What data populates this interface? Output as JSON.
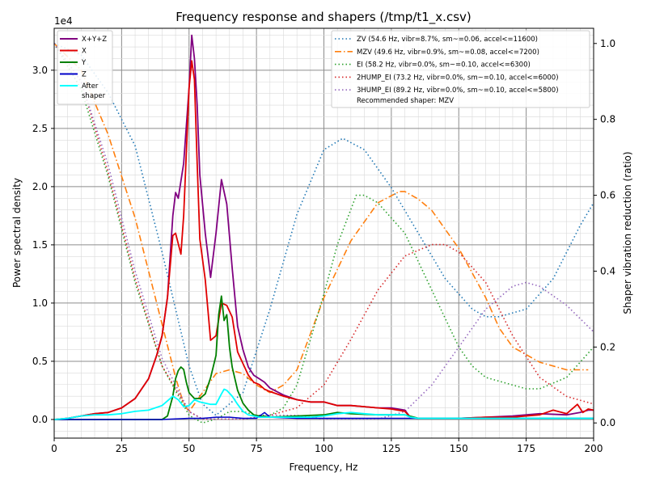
{
  "chart_data": {
    "type": "line",
    "title": "Frequency response and shapers (/tmp/t1_x.csv)",
    "xlabel": "Frequency, Hz",
    "ylabel_left": "Power spectral density",
    "ylabel_right": "Shaper vibration reduction (ratio)",
    "left_scale_label": "1e4",
    "xlim": [
      0,
      200
    ],
    "ylim_left": [
      -0.16,
      3.36
    ],
    "ylim_right": [
      -0.04,
      1.04
    ],
    "x_ticks": [
      0,
      25,
      50,
      75,
      100,
      125,
      150,
      175,
      200
    ],
    "y_ticks_left": [
      0.0,
      0.5,
      1.0,
      1.5,
      2.0,
      2.5,
      3.0
    ],
    "y_ticks_right": [
      0.0,
      0.2,
      0.4,
      0.6,
      0.8,
      1.0
    ],
    "x_tick_labels": [
      "0",
      "25",
      "50",
      "75",
      "100",
      "125",
      "150",
      "175",
      "200"
    ],
    "y_tick_labels_left": [
      "0.0",
      "0.5",
      "1.0",
      "1.5",
      "2.0",
      "2.5",
      "3.0"
    ],
    "y_tick_labels_right": [
      "0.0",
      "0.2",
      "0.4",
      "0.6",
      "0.8",
      "1.0"
    ],
    "grid": true,
    "legend_left_placement": "upper-left",
    "legend_right_placement": "upper-right",
    "psd_series": [
      {
        "name": "X+Y+Z",
        "color": "#800080",
        "x": [
          0,
          5,
          10,
          15,
          20,
          25,
          30,
          35,
          38,
          40,
          42,
          44,
          45,
          46,
          48,
          50,
          51,
          52,
          53,
          54,
          56,
          58,
          60,
          62,
          64,
          66,
          68,
          70,
          72,
          74,
          76,
          78,
          80,
          85,
          90,
          95,
          100,
          105,
          110,
          115,
          120,
          125,
          130,
          132,
          135,
          140,
          150,
          160,
          170,
          180,
          190,
          195,
          198,
          200
        ],
        "y": [
          0.0,
          0.01,
          0.03,
          0.05,
          0.06,
          0.1,
          0.18,
          0.35,
          0.55,
          0.72,
          1.05,
          1.75,
          1.95,
          1.9,
          2.2,
          2.85,
          3.3,
          3.1,
          2.7,
          2.1,
          1.6,
          1.22,
          1.6,
          2.06,
          1.85,
          1.3,
          0.8,
          0.6,
          0.45,
          0.38,
          0.35,
          0.32,
          0.27,
          0.21,
          0.17,
          0.15,
          0.15,
          0.12,
          0.12,
          0.11,
          0.1,
          0.1,
          0.08,
          0.02,
          0.01,
          0.01,
          0.01,
          0.02,
          0.03,
          0.05,
          0.04,
          0.06,
          0.08,
          0.08
        ]
      },
      {
        "name": "X",
        "color": "#e00000",
        "x": [
          0,
          5,
          10,
          15,
          20,
          25,
          30,
          35,
          38,
          40,
          42,
          44,
          45,
          47,
          48,
          50,
          51,
          52,
          53,
          54,
          56,
          58,
          60,
          62,
          64,
          66,
          68,
          70,
          72,
          74,
          76,
          78,
          80,
          85,
          90,
          95,
          100,
          105,
          110,
          115,
          120,
          125,
          130,
          132,
          135,
          140,
          150,
          160,
          170,
          175,
          180,
          185,
          190,
          194,
          196,
          198,
          200
        ],
        "y": [
          0.0,
          0.01,
          0.03,
          0.05,
          0.06,
          0.1,
          0.18,
          0.35,
          0.55,
          0.72,
          1.05,
          1.58,
          1.6,
          1.42,
          1.75,
          2.85,
          3.08,
          2.92,
          2.2,
          1.55,
          1.2,
          0.68,
          0.72,
          1.0,
          0.98,
          0.88,
          0.58,
          0.48,
          0.38,
          0.32,
          0.3,
          0.26,
          0.24,
          0.2,
          0.17,
          0.15,
          0.15,
          0.12,
          0.12,
          0.11,
          0.1,
          0.09,
          0.07,
          0.02,
          0.01,
          0.01,
          0.01,
          0.02,
          0.02,
          0.03,
          0.04,
          0.08,
          0.05,
          0.13,
          0.06,
          0.09,
          0.08
        ]
      },
      {
        "name": "Y",
        "color": "#008000",
        "x": [
          0,
          40,
          42,
          44,
          45,
          46,
          47,
          48,
          49,
          50,
          52,
          54,
          56,
          58,
          60,
          61,
          62,
          63,
          64,
          65,
          66,
          68,
          70,
          72,
          74,
          76,
          80,
          90,
          100,
          105,
          110,
          120,
          130,
          135,
          150,
          175,
          200
        ],
        "y": [
          0.0,
          0.0,
          0.03,
          0.2,
          0.35,
          0.42,
          0.45,
          0.43,
          0.32,
          0.23,
          0.18,
          0.18,
          0.22,
          0.36,
          0.55,
          0.9,
          1.06,
          0.85,
          0.9,
          0.62,
          0.45,
          0.25,
          0.14,
          0.08,
          0.04,
          0.03,
          0.02,
          0.03,
          0.04,
          0.06,
          0.05,
          0.04,
          0.04,
          0.01,
          0.01,
          0.01,
          0.01
        ]
      },
      {
        "name": "Z",
        "color": "#0000c8",
        "x": [
          0,
          40,
          50,
          55,
          60,
          65,
          70,
          75,
          78,
          80,
          90,
          100,
          150,
          200
        ],
        "y": [
          0.0,
          0.0,
          0.01,
          0.01,
          0.02,
          0.02,
          0.01,
          0.01,
          0.06,
          0.02,
          0.01,
          0.01,
          0.01,
          0.01
        ]
      },
      {
        "name": "After shaper",
        "color": "#00ffff",
        "x": [
          0,
          5,
          10,
          15,
          20,
          25,
          30,
          35,
          40,
          42,
          44,
          46,
          48,
          50,
          52,
          54,
          56,
          58,
          60,
          62,
          63,
          64,
          66,
          68,
          70,
          72,
          74,
          76,
          78,
          80,
          85,
          90,
          95,
          100,
          105,
          110,
          115,
          120,
          125,
          130,
          132,
          135,
          140,
          150,
          160,
          170,
          180,
          190,
          200
        ],
        "y": [
          0.0,
          0.01,
          0.03,
          0.04,
          0.04,
          0.05,
          0.07,
          0.08,
          0.12,
          0.16,
          0.2,
          0.17,
          0.11,
          0.12,
          0.17,
          0.15,
          0.14,
          0.13,
          0.13,
          0.22,
          0.26,
          0.25,
          0.2,
          0.13,
          0.07,
          0.04,
          0.03,
          0.02,
          0.02,
          0.02,
          0.02,
          0.02,
          0.02,
          0.03,
          0.05,
          0.06,
          0.05,
          0.04,
          0.04,
          0.04,
          0.02,
          0.01,
          0.01,
          0.01,
          0.01,
          0.01,
          0.01,
          0.01,
          0.01
        ]
      }
    ],
    "shaper_series": [
      {
        "name": "ZV (54.6 Hz, vibr=8.7%, sm~=0.06, accel<=11600)",
        "color": "#1f77b4",
        "dash": "dotted",
        "x": [
          0,
          10,
          20,
          30,
          40,
          45,
          50,
          55,
          60,
          70,
          80,
          90,
          100,
          107,
          115,
          125,
          135,
          145,
          155,
          160,
          165,
          175,
          185,
          195,
          200
        ],
        "y": [
          1.0,
          0.97,
          0.87,
          0.73,
          0.45,
          0.3,
          0.15,
          0.05,
          0.02,
          0.08,
          0.3,
          0.55,
          0.72,
          0.75,
          0.72,
          0.62,
          0.5,
          0.38,
          0.3,
          0.28,
          0.28,
          0.3,
          0.38,
          0.52,
          0.58
        ]
      },
      {
        "name": "MZV (49.6 Hz, vibr=0.9%, sm~=0.08, accel<=7200)",
        "color": "#ff7f0e",
        "dash": "dashdot",
        "x": [
          0,
          10,
          20,
          30,
          40,
          45,
          48,
          50,
          55,
          60,
          65,
          70,
          75,
          80,
          85,
          90,
          100,
          110,
          120,
          128,
          130,
          135,
          140,
          150,
          160,
          165,
          170,
          180,
          190,
          198
        ],
        "y": [
          1.0,
          0.93,
          0.76,
          0.54,
          0.26,
          0.12,
          0.05,
          0.03,
          0.08,
          0.13,
          0.14,
          0.13,
          0.1,
          0.08,
          0.1,
          0.14,
          0.33,
          0.48,
          0.58,
          0.61,
          0.61,
          0.59,
          0.56,
          0.46,
          0.33,
          0.25,
          0.2,
          0.16,
          0.14,
          0.14
        ]
      },
      {
        "name": "EI (58.2 Hz, vibr=0.0%, sm~=0.10, accel<=6300)",
        "color": "#2ca02c",
        "dash": "dotted",
        "x": [
          0,
          10,
          20,
          30,
          40,
          50,
          55,
          60,
          65,
          70,
          75,
          80,
          85,
          90,
          100,
          105,
          112,
          115,
          120,
          130,
          140,
          150,
          155,
          160,
          170,
          175,
          180,
          190,
          200
        ],
        "y": [
          1.0,
          0.88,
          0.65,
          0.37,
          0.15,
          0.02,
          0.0,
          0.01,
          0.03,
          0.03,
          0.02,
          0.02,
          0.04,
          0.1,
          0.34,
          0.47,
          0.6,
          0.6,
          0.58,
          0.5,
          0.35,
          0.2,
          0.15,
          0.12,
          0.1,
          0.09,
          0.09,
          0.12,
          0.2
        ]
      },
      {
        "name": "2HUMP_EI (73.2 Hz, vibr=0.0%, sm~=0.10, accel<=6000)",
        "color": "#d62728",
        "dash": "dotted",
        "x": [
          0,
          10,
          20,
          30,
          40,
          50,
          55,
          60,
          70,
          80,
          90,
          100,
          110,
          120,
          130,
          140,
          145,
          150,
          160,
          170,
          180,
          190,
          200
        ],
        "y": [
          1.0,
          0.9,
          0.66,
          0.38,
          0.15,
          0.03,
          0.01,
          0.01,
          0.01,
          0.02,
          0.04,
          0.1,
          0.22,
          0.35,
          0.44,
          0.47,
          0.47,
          0.45,
          0.37,
          0.23,
          0.12,
          0.07,
          0.05
        ]
      },
      {
        "name": "3HUMP_EI (89.2 Hz, vibr=0.0%, sm~=0.10, accel<=5800)",
        "color": "#9467bd",
        "dash": "dotted",
        "x": [
          0,
          10,
          20,
          30,
          40,
          50,
          55,
          60,
          70,
          80,
          90,
          100,
          110,
          120,
          130,
          140,
          150,
          160,
          170,
          175,
          180,
          190,
          200
        ],
        "y": [
          1.0,
          0.9,
          0.68,
          0.4,
          0.17,
          0.03,
          0.01,
          0.01,
          0.01,
          0.02,
          0.02,
          0.01,
          0.01,
          0.01,
          0.03,
          0.1,
          0.2,
          0.3,
          0.36,
          0.37,
          0.36,
          0.31,
          0.24
        ]
      }
    ]
  },
  "legend_left": {
    "items": [
      {
        "label": "X+Y+Z",
        "color": "#800080"
      },
      {
        "label": "X",
        "color": "#e00000"
      },
      {
        "label": "Y",
        "color": "#008000"
      },
      {
        "label": "Z",
        "color": "#0000c8"
      },
      {
        "label": "After",
        "label2": "shaper",
        "color": "#00ffff"
      }
    ]
  },
  "legend_right": {
    "recommended": "Recommended shaper: MZV"
  }
}
